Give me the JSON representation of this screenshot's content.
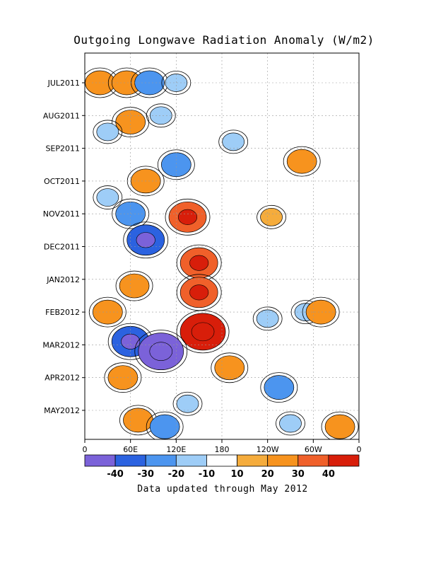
{
  "chart_data": {
    "type": "heatmap",
    "title": "Outgoing Longwave Radiation Anomaly (W/m2)",
    "footnote": "Data updated through May 2012",
    "xlabel": "",
    "ylabel": "",
    "x_ticks": [
      "0",
      "60E",
      "120E",
      "180",
      "120W",
      "60W",
      "0"
    ],
    "y_ticks": [
      "JUL2011",
      "AUG2011",
      "SEP2011",
      "OCT2011",
      "NOV2011",
      "DEC2011",
      "JAN2012",
      "FEB2012",
      "MAR2012",
      "APR2012",
      "MAY2012"
    ],
    "grid": true,
    "colorbar": {
      "labels": [
        "-40",
        "-30",
        "-20",
        "-10",
        "10",
        "20",
        "30",
        "40"
      ],
      "colors": [
        "#7b62d9",
        "#2b62e0",
        "#4c95ef",
        "#9ecdf7",
        "#ffffff",
        "#f5ac3c",
        "#f7931e",
        "#f0602a",
        "#d81e0a"
      ]
    },
    "anomalies": [
      {
        "lon": 20,
        "month": 0.0,
        "value": 20
      },
      {
        "lon": 55,
        "month": 0.0,
        "value": 20
      },
      {
        "lon": 85,
        "month": 0.0,
        "value": -20
      },
      {
        "lon": 120,
        "month": 0.0,
        "value": -10
      },
      {
        "lon": 60,
        "month": 1.2,
        "value": 20
      },
      {
        "lon": 100,
        "month": 1.0,
        "value": -10
      },
      {
        "lon": 30,
        "month": 1.5,
        "value": -10
      },
      {
        "lon": 80,
        "month": 3.0,
        "value": 20
      },
      {
        "lon": 120,
        "month": 2.5,
        "value": -20
      },
      {
        "lon": 30,
        "month": 3.5,
        "value": -10
      },
      {
        "lon": 135,
        "month": 4.1,
        "value": 30
      },
      {
        "lon": 60,
        "month": 4.0,
        "value": -20
      },
      {
        "lon": 80,
        "month": 4.8,
        "value": -30
      },
      {
        "lon": 150,
        "month": 5.5,
        "value": 30
      },
      {
        "lon": 150,
        "month": 6.4,
        "value": 30
      },
      {
        "lon": 65,
        "month": 6.2,
        "value": 20
      },
      {
        "lon": 30,
        "month": 7.0,
        "value": 20
      },
      {
        "lon": 155,
        "month": 7.6,
        "value": 40
      },
      {
        "lon": 60,
        "month": 7.9,
        "value": -30
      },
      {
        "lon": 100,
        "month": 8.2,
        "value": -40
      },
      {
        "lon": 240,
        "month": 7.2,
        "value": -10
      },
      {
        "lon": 290,
        "month": 7.0,
        "value": -10
      },
      {
        "lon": 50,
        "month": 9.0,
        "value": 20
      },
      {
        "lon": 190,
        "month": 8.7,
        "value": 20
      },
      {
        "lon": 255,
        "month": 9.3,
        "value": -20
      },
      {
        "lon": 135,
        "month": 9.8,
        "value": -10
      },
      {
        "lon": 310,
        "month": 7.0,
        "value": 20
      },
      {
        "lon": 335,
        "month": 10.5,
        "value": 20
      },
      {
        "lon": 70,
        "month": 10.3,
        "value": 20
      },
      {
        "lon": 105,
        "month": 10.5,
        "value": -20
      },
      {
        "lon": 270,
        "month": 10.4,
        "value": -10
      },
      {
        "lon": 195,
        "month": 1.8,
        "value": -10
      },
      {
        "lon": 285,
        "month": 2.4,
        "value": 20
      },
      {
        "lon": 245,
        "month": 4.1,
        "value": 10
      }
    ]
  }
}
